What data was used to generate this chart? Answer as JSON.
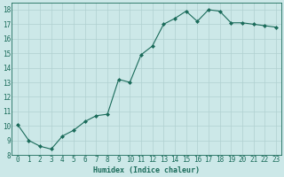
{
  "x": [
    0,
    1,
    2,
    3,
    4,
    5,
    6,
    7,
    8,
    9,
    10,
    11,
    12,
    13,
    14,
    15,
    16,
    17,
    18,
    19,
    20,
    21,
    22,
    23
  ],
  "y": [
    10.1,
    9.0,
    8.6,
    8.4,
    9.3,
    9.7,
    10.3,
    10.7,
    10.8,
    13.2,
    13.0,
    14.9,
    15.5,
    17.0,
    17.4,
    17.9,
    17.2,
    18.0,
    17.9,
    17.1,
    17.1,
    17.0,
    16.9,
    16.8
  ],
  "line_color": "#1a6b5a",
  "marker": "D",
  "marker_size": 2.0,
  "bg_color": "#cce8e8",
  "grid_color": "#b0d0d0",
  "xlabel": "Humidex (Indice chaleur)",
  "ylim": [
    8,
    18.5
  ],
  "xlim": [
    -0.5,
    23.5
  ],
  "yticks": [
    8,
    9,
    10,
    11,
    12,
    13,
    14,
    15,
    16,
    17,
    18
  ],
  "xticks": [
    0,
    1,
    2,
    3,
    4,
    5,
    6,
    7,
    8,
    9,
    10,
    11,
    12,
    13,
    14,
    15,
    16,
    17,
    18,
    19,
    20,
    21,
    22,
    23
  ],
  "tick_color": "#1a6b5a",
  "label_fontsize": 6.0,
  "tick_fontsize": 5.5,
  "linewidth": 0.8
}
